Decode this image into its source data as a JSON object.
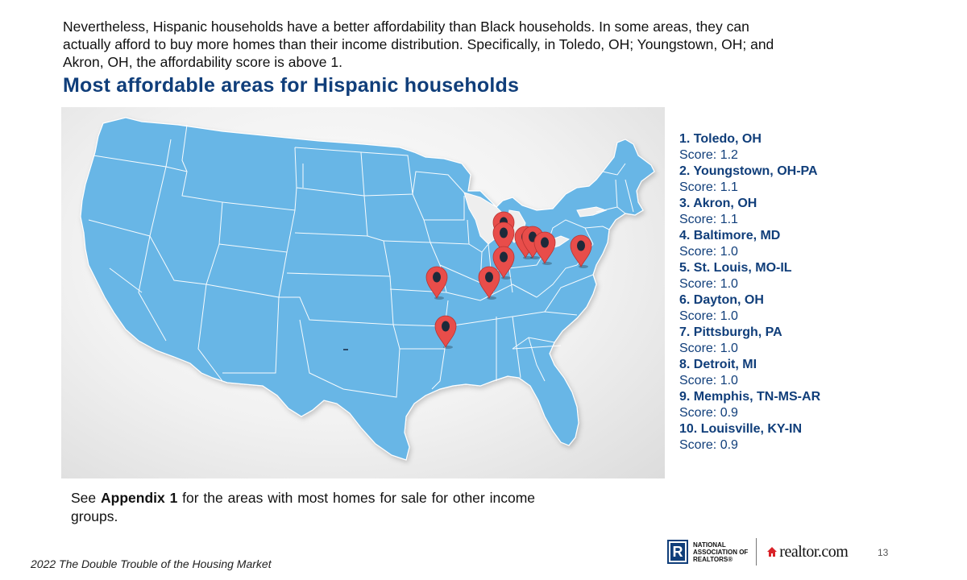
{
  "intro_text": "Nevertheless, Hispanic households have a better affordability than Black households. In some areas, they can actually afford to buy more homes than their income distribution. Specifically, in Toledo, OH; Youngstown, OH; and Akron, OH, the affordability score is above 1.",
  "heading": "Most affordable areas for Hispanic households",
  "map": {
    "land_color": "#67b6e6",
    "border_color": "#ffffff",
    "pin_color": "#e84d4a",
    "pin_dot_color": "#1d2a3a",
    "pin_icon": "map-marker-icon"
  },
  "ranking": [
    {
      "name": "1. Toledo, OH",
      "score": "Score: 1.2"
    },
    {
      "name": "2. Youngstown, OH-PA",
      "score": "Score: 1.1"
    },
    {
      "name": "3. Akron, OH",
      "score": "Score: 1.1"
    },
    {
      "name": "4. Baltimore, MD",
      "score": "Score: 1.0"
    },
    {
      "name": "5. St. Louis, MO-IL",
      "score": "Score: 1.0"
    },
    {
      "name": "6. Dayton, OH",
      "score": "Score: 1.0"
    },
    {
      "name": "7. Pittsburgh, PA",
      "score": "Score: 1.0"
    },
    {
      "name": "8. Detroit, MI",
      "score": "Score: 1.0"
    },
    {
      "name": "9. Memphis, TN-MS-AR",
      "score": "Score: 0.9"
    },
    {
      "name": "10. Louisville, KY-IN",
      "score": "Score: 0.9"
    }
  ],
  "appendix": {
    "prefix": "See ",
    "bold": "Appendix 1",
    "suffix": " for the areas with most homes for sale for other income groups."
  },
  "footer": {
    "title": "2022 The Double Trouble of the Housing Market",
    "page_number": "13"
  },
  "logos": {
    "nar_mark": "R",
    "nar_lines": [
      "NATIONAL",
      "ASSOCIATION OF",
      "REALTORS®"
    ],
    "realtor_text": "realtor.com",
    "realtor_color": "#d92228",
    "nar_color": "#103e7a"
  }
}
